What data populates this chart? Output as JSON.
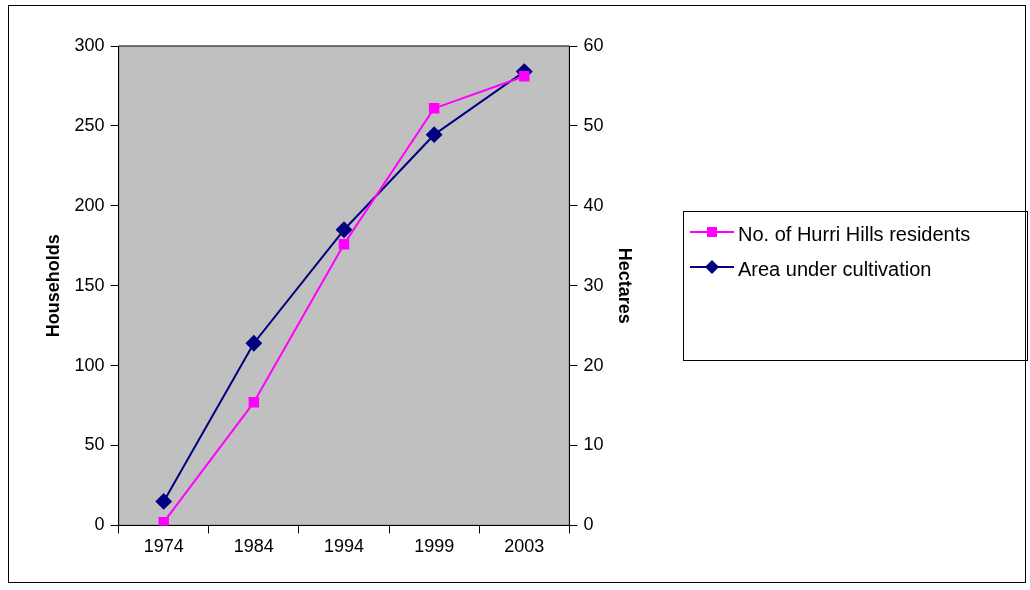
{
  "chart_data": {
    "type": "line",
    "categories": [
      "1974",
      "1984",
      "1994",
      "1999",
      "2003"
    ],
    "ylabel": "Households",
    "y2label": "Hectares",
    "series": [
      {
        "name": "No. of Hurri Hills residents",
        "color": "#ff00ff",
        "marker": "square",
        "values": [
          2,
          77,
          176,
          261,
          281
        ]
      },
      {
        "name": "Area under cultivation",
        "color": "#000080",
        "marker": "diamond",
        "axis": "y2",
        "values": [
          3,
          22.8,
          37,
          48.9,
          56.8
        ]
      }
    ],
    "ylim": [
      0,
      300
    ],
    "yticks": [
      0,
      50,
      100,
      150,
      200,
      250,
      300
    ],
    "y2lim": [
      0,
      60
    ],
    "y2ticks": [
      0,
      10,
      20,
      30,
      40,
      50,
      60
    ],
    "grid": false,
    "legend": "right",
    "line_style": "solid"
  }
}
